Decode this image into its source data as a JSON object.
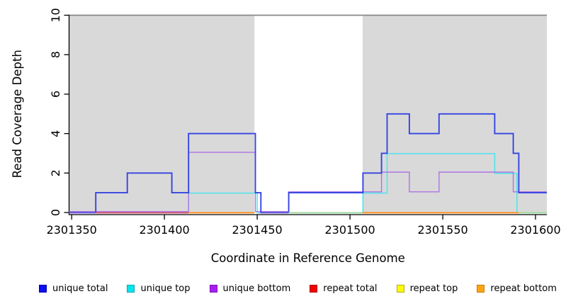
{
  "chart_data": {
    "type": "line",
    "subtype": "step-coverage-plot",
    "title": "",
    "xlabel": "Coordinate in Reference Genome",
    "ylabel": "Read Coverage Depth",
    "xlim": [
      2301348.6,
      2301606.1
    ],
    "ylim": [
      0,
      10
    ],
    "x_ticks": [
      2301350,
      2301400,
      2301450,
      2301500,
      2301550,
      2301600
    ],
    "y_ticks": [
      0,
      2,
      4,
      6,
      8,
      10
    ],
    "grid": "off",
    "legend_position": "bottom",
    "colors": {
      "shading": "#d9d9d9",
      "plot_top_border": "#878787",
      "axis": "#000000"
    },
    "shaded_regions": [
      {
        "x0": 2301348.6,
        "x1": 2301448.5,
        "color": "#d9d9d9"
      },
      {
        "x0": 2301506.8,
        "x1": 2301606.1,
        "color": "#d9d9d9"
      }
    ],
    "series": [
      {
        "name": "unique total",
        "line_color": "#3544e2",
        "swatch_color": "#0d0df5",
        "swatch_border": "#0000b0",
        "points": [
          [
            2301348.6,
            0
          ],
          [
            2301363,
            1
          ],
          [
            2301380,
            2
          ],
          [
            2301404,
            1
          ],
          [
            2301413,
            4
          ],
          [
            2301449,
            1
          ],
          [
            2301452,
            0
          ],
          [
            2301467,
            1
          ],
          [
            2301507,
            2
          ],
          [
            2301517,
            3
          ],
          [
            2301520,
            5
          ],
          [
            2301532,
            4
          ],
          [
            2301548,
            5
          ],
          [
            2301578,
            4
          ],
          [
            2301588,
            3
          ],
          [
            2301591,
            1
          ],
          [
            2301606.1,
            1
          ]
        ]
      },
      {
        "name": "unique top",
        "line_color": "#4ce4ec",
        "swatch_color": "#00e6f0",
        "swatch_border": "#00a8b4",
        "points": [
          [
            2301348.6,
            0
          ],
          [
            2301413,
            1
          ],
          [
            2301450,
            0
          ],
          [
            2301507,
            1
          ],
          [
            2301520,
            3
          ],
          [
            2301578,
            2
          ],
          [
            2301590,
            0
          ],
          [
            2301606.1,
            0
          ]
        ]
      },
      {
        "name": "unique bottom",
        "line_color": "#ad74e2",
        "swatch_color": "#a81ef0",
        "swatch_border": "#7a10b8",
        "points": [
          [
            2301348.6,
            0
          ],
          [
            2301413,
            3
          ],
          [
            2301449,
            0
          ],
          [
            2301467,
            1
          ],
          [
            2301517,
            2
          ],
          [
            2301532,
            1
          ],
          [
            2301548,
            2
          ],
          [
            2301588,
            1
          ],
          [
            2301606.1,
            1
          ]
        ]
      },
      {
        "name": "repeat total",
        "line_color": "#d5536f",
        "swatch_color": "#f50000",
        "swatch_border": "#b00000",
        "points": [
          [
            2301348.6,
            0
          ],
          [
            2301606.1,
            0
          ]
        ]
      },
      {
        "name": "repeat top",
        "line_color": "#e6e65a",
        "swatch_color": "#fdfd00",
        "swatch_border": "#b8ae00",
        "points": [
          [
            2301348.6,
            0
          ],
          [
            2301606.1,
            0
          ]
        ]
      },
      {
        "name": "repeat bottom",
        "line_color": "#ff9020",
        "swatch_color": "#ffa513",
        "swatch_border": "#c87a00",
        "points": [
          [
            2301348.6,
            0
          ],
          [
            2301606.1,
            0
          ]
        ]
      }
    ],
    "baseline_segments": [
      {
        "x0": 2301348.6,
        "x1": 2301363,
        "color": "#7a5fd8"
      },
      {
        "x0": 2301363,
        "x1": 2301413,
        "color": "#d5536f"
      },
      {
        "x0": 2301413,
        "x1": 2301448.5,
        "color": "#ff9020"
      },
      {
        "x0": 2301452,
        "x1": 2301467,
        "color": "#7a5fd8"
      },
      {
        "x0": 2301467,
        "x1": 2301506.8,
        "color": "#a4d9a0"
      },
      {
        "x0": 2301506.8,
        "x1": 2301591,
        "color": "#ff9020"
      },
      {
        "x0": 2301591,
        "x1": 2301606.1,
        "color": "#a4d9a0"
      }
    ]
  }
}
